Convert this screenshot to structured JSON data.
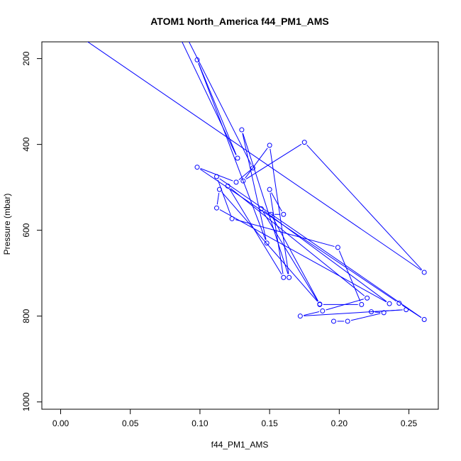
{
  "chart_data": {
    "type": "line",
    "title": "ATOM1 North_America f44_PM1_AMS",
    "xlabel": "f44_PM1_AMS",
    "ylabel": "Pressure (mbar)",
    "xlim": [
      -0.0135,
      0.2711
    ],
    "ylim": [
      1017,
      161
    ],
    "y_reversed": true,
    "grid": false,
    "x_ticks": [
      "0.00",
      "0.05",
      "0.10",
      "0.15",
      "0.20",
      "0.25"
    ],
    "y_ticks": [
      "200",
      "400",
      "600",
      "800",
      "1000"
    ],
    "series_color": "#0000ff",
    "markers": "open-circle",
    "series": [
      {
        "points": [
          {
            "x": 0.019,
            "y": 160,
            "marker": false
          },
          {
            "x": 0.261,
            "y": 698,
            "marker": true
          },
          {
            "x": 0.175,
            "y": 395,
            "marker": true
          },
          {
            "x": 0.131,
            "y": 485,
            "marker": true
          },
          {
            "x": 0.15,
            "y": 402,
            "marker": true
          },
          {
            "x": 0.164,
            "y": 710,
            "marker": true
          },
          {
            "x": 0.13,
            "y": 366,
            "marker": true
          },
          {
            "x": 0.148,
            "y": 630,
            "marker": true
          },
          {
            "x": 0.098,
            "y": 203,
            "marker": true
          },
          {
            "x": 0.127,
            "y": 432,
            "marker": true
          },
          {
            "x": 0.087,
            "y": 160,
            "marker": false
          }
        ]
      },
      {
        "points": [
          {
            "x": 0.092,
            "y": 160,
            "marker": false
          },
          {
            "x": 0.138,
            "y": 455,
            "marker": true
          },
          {
            "x": 0.126,
            "y": 488,
            "marker": true
          },
          {
            "x": 0.098,
            "y": 453,
            "marker": true
          },
          {
            "x": 0.243,
            "y": 770,
            "marker": true
          },
          {
            "x": 0.261,
            "y": 808,
            "marker": true
          },
          {
            "x": 0.112,
            "y": 475,
            "marker": true
          },
          {
            "x": 0.123,
            "y": 573,
            "marker": true
          },
          {
            "x": 0.199,
            "y": 640,
            "marker": true
          },
          {
            "x": 0.216,
            "y": 773,
            "marker": true
          },
          {
            "x": 0.186,
            "y": 773,
            "marker": true
          },
          {
            "x": 0.144,
            "y": 550,
            "marker": true
          },
          {
            "x": 0.236,
            "y": 771,
            "marker": true
          },
          {
            "x": 0.112,
            "y": 548,
            "marker": true
          },
          {
            "x": 0.114,
            "y": 505,
            "marker": true
          },
          {
            "x": 0.186,
            "y": 772,
            "marker": true
          },
          {
            "x": 0.151,
            "y": 563,
            "marker": true
          },
          {
            "x": 0.16,
            "y": 563,
            "marker": true
          },
          {
            "x": 0.15,
            "y": 505,
            "marker": true
          },
          {
            "x": 0.16,
            "y": 710,
            "marker": true
          },
          {
            "x": 0.12,
            "y": 497,
            "marker": true
          },
          {
            "x": 0.22,
            "y": 758,
            "marker": true
          },
          {
            "x": 0.188,
            "y": 788,
            "marker": true
          },
          {
            "x": 0.172,
            "y": 800,
            "marker": true
          },
          {
            "x": 0.248,
            "y": 785,
            "marker": true
          },
          {
            "x": 0.223,
            "y": 790,
            "marker": true
          },
          {
            "x": 0.232,
            "y": 792,
            "marker": true
          },
          {
            "x": 0.206,
            "y": 812,
            "marker": true
          },
          {
            "x": 0.196,
            "y": 812,
            "marker": true
          }
        ]
      }
    ]
  }
}
